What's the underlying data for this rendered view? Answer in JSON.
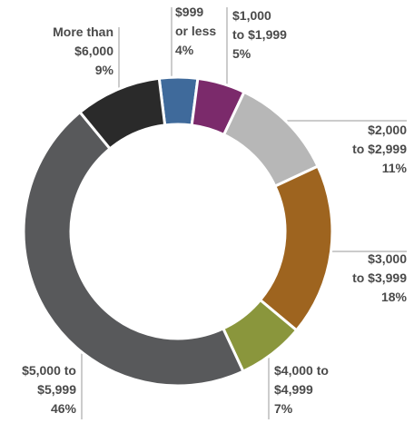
{
  "chart_data": {
    "type": "donut",
    "categories": [
      [
        "$999",
        "or less"
      ],
      [
        "$1,000",
        "to $1,999"
      ],
      [
        "$2,000",
        "to $2,999"
      ],
      [
        "$3,000",
        "to $3,999"
      ],
      [
        "$4,000 to",
        "$4,999"
      ],
      [
        "$5,000 to",
        "$5,999"
      ],
      [
        "More than",
        "$6,000"
      ]
    ],
    "values": [
      4,
      5,
      11,
      18,
      7,
      46,
      9
    ],
    "value_labels": [
      "4%",
      "5%",
      "11%",
      "18%",
      "7%",
      "46%",
      "9%"
    ],
    "colors": [
      "#3f6a9b",
      "#7b2a6b",
      "#b7b7b7",
      "#9e641f",
      "#8a963c",
      "#58595b",
      "#2a2a2a"
    ]
  }
}
